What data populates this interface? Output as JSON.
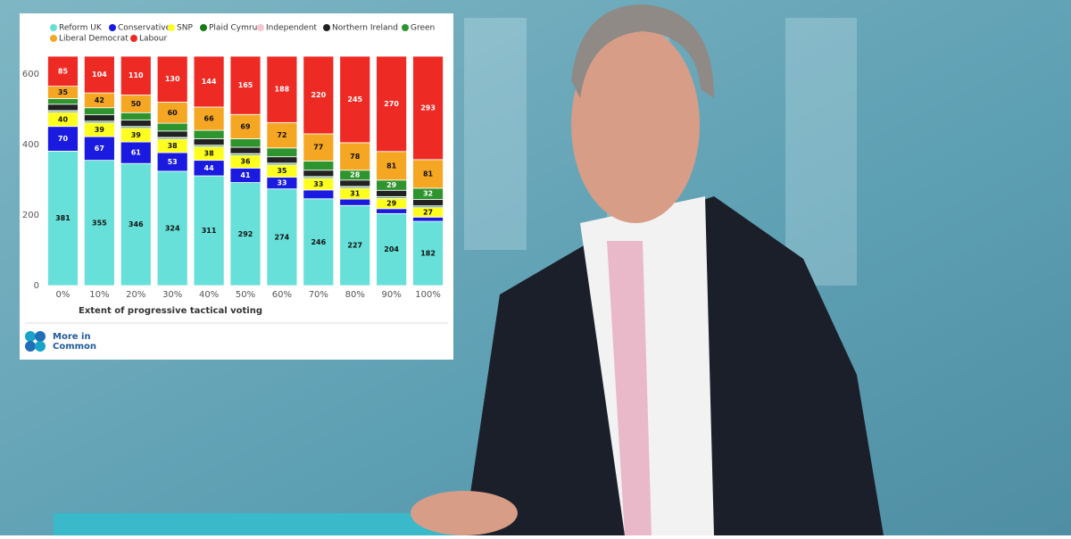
{
  "chart_data": {
    "type": "stacked_bar",
    "x_label": "Extent of progressive tactical voting",
    "categories": [
      "0%",
      "10%",
      "20%",
      "30%",
      "40%",
      "50%",
      "60%",
      "70%",
      "80%",
      "90%",
      "100%"
    ],
    "series": [
      {
        "name": "Reform UK",
        "color": "#66e0d8",
        "values": [
          381,
          355,
          346,
          324,
          311,
          292,
          274,
          246,
          227,
          204,
          182
        ]
      },
      {
        "name": "Conservative",
        "color": "#1a1ae0",
        "values": [
          70,
          67,
          61,
          53,
          44,
          41,
          33,
          25,
          18,
          14,
          12
        ]
      },
      {
        "name": "SNP",
        "color": "#ffff1f",
        "values": [
          40,
          39,
          39,
          38,
          38,
          36,
          35,
          33,
          31,
          29,
          27
        ]
      },
      {
        "name": "Plaid Cymru",
        "color": "#157a15",
        "values": [
          4,
          4,
          4,
          4,
          4,
          4,
          4,
          4,
          4,
          4,
          4
        ]
      },
      {
        "name": "Independent",
        "color": "#f7c6d0",
        "values": [
          1,
          1,
          1,
          1,
          1,
          1,
          1,
          1,
          1,
          1,
          1
        ]
      },
      {
        "name": "Northern Ireland",
        "color": "#222222",
        "values": [
          18,
          18,
          18,
          18,
          18,
          18,
          18,
          18,
          18,
          18,
          18
        ]
      },
      {
        "name": "Green",
        "color": "#2e952e",
        "values": [
          16,
          20,
          21,
          22,
          24,
          24,
          25,
          26,
          28,
          29,
          32
        ]
      },
      {
        "name": "Liberal Democrat",
        "color": "#f5a623",
        "values": [
          35,
          42,
          50,
          60,
          66,
          69,
          72,
          77,
          78,
          81,
          81
        ]
      },
      {
        "name": "Labour",
        "color": "#ee2a24",
        "values": [
          85,
          104,
          110,
          130,
          144,
          165,
          188,
          220,
          245,
          270,
          293
        ]
      }
    ],
    "ylim": [
      0,
      650
    ],
    "yticks": [
      0,
      200,
      400,
      600
    ],
    "grid": false
  },
  "logo": {
    "lines": [
      "More in",
      "Common"
    ]
  }
}
